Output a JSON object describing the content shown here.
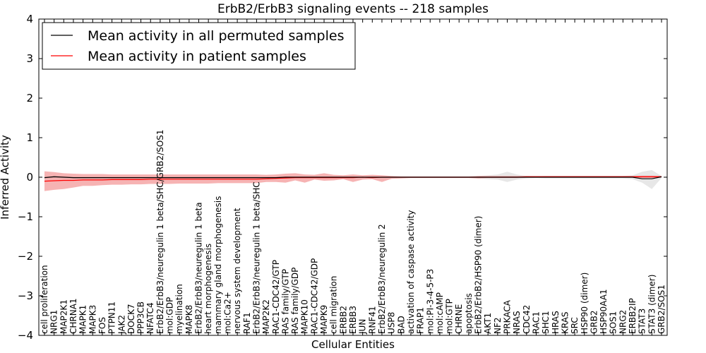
{
  "chart_data": {
    "type": "line",
    "title": "ErbB2/ErbB3 signaling events -- 218 samples",
    "xlabel": "Cellular Entities",
    "ylabel": "Inferred Activity",
    "ylim": [
      -4,
      4
    ],
    "yticks": [
      -4,
      -3,
      -2,
      -1,
      0,
      1,
      2,
      3,
      4
    ],
    "ytick_labels": [
      "−4",
      "−3",
      "−2",
      "−1",
      "0",
      "1",
      "2",
      "3",
      "4"
    ],
    "legend_position": "top-left",
    "grid": false,
    "categories": [
      "cell proliferation",
      "NRG1",
      "MAP2K1",
      "CHRNA1",
      "MAPK1",
      "MAPK3",
      "FOS",
      "PTPN11",
      "JAK2",
      "DOCK7",
      "PPP3CB",
      "NFATC4",
      "ErbB2/ErbB3/neuregulin 1 beta/SHC/GRB2/SOS1",
      "mol:GDP",
      "myelination",
      "MAPK8",
      "ErbB2/ErbB3/neuregulin 1 beta",
      "heart morphogenesis",
      "mammary gland morphogenesis",
      "mol:Ca2+",
      "nervous system development",
      "RAF1",
      "ErbB2/ErbB3/neuregulin 1 beta/SHC",
      "MAP2K2",
      "RAC1-CDC42/GTP",
      "RAS family/GTP",
      "RAS family/GDP",
      "MAPK10",
      "RAC1-CDC42/GDP",
      "MAPK9",
      "cell migration",
      "ERBB2",
      "ERBB3",
      "JUN",
      "RNF41",
      "ErbB2/ErbB3/neuregulin 2",
      "USP8",
      "BAD",
      "activation of caspase activity",
      "FRAP1",
      "mol:PI-3-4-5-P3",
      "mol:cAMP",
      "mol:GTP",
      "CHRNE",
      "apoptosis",
      "ErbB2/ErbB2/HSP90 (dimer)",
      "AKT1",
      "NF2",
      "PRKACA",
      "NRAS",
      "CDC42",
      "RAC1",
      "SHC1",
      "HRAS",
      "KRAS",
      "SRC",
      "HSP90 (dimer)",
      "GRB2",
      "HSP90AA1",
      "SOS1",
      "NRG2",
      "ERBB2IP",
      "STAT3",
      "STAT3 (dimer)",
      "GRB2/SOS1"
    ],
    "series": [
      {
        "name": "Mean activity in all permuted samples",
        "color": "#000000",
        "values": [
          -0.01,
          0.01,
          0.0,
          -0.01,
          -0.01,
          -0.01,
          -0.01,
          -0.01,
          -0.01,
          -0.01,
          -0.01,
          -0.01,
          -0.01,
          -0.01,
          -0.01,
          -0.01,
          -0.01,
          -0.01,
          -0.01,
          -0.01,
          -0.01,
          -0.01,
          -0.01,
          -0.01,
          -0.01,
          0.0,
          0.0,
          0.0,
          0.0,
          0.0,
          0.0,
          0.0,
          0.0,
          0.0,
          0.0,
          0.0,
          0.0,
          0.0,
          0.0,
          0.0,
          0.0,
          0.0,
          0.0,
          0.0,
          0.0,
          0.0,
          0.0,
          0.0,
          0.0,
          0.0,
          0.0,
          0.0,
          0.0,
          0.0,
          0.0,
          0.0,
          0.0,
          0.0,
          0.0,
          0.0,
          0.0,
          0.0,
          -0.04,
          -0.04,
          0.01
        ],
        "band_low": [
          -0.03,
          -0.02,
          -0.03,
          -0.04,
          -0.04,
          -0.04,
          -0.04,
          -0.04,
          -0.04,
          -0.04,
          -0.04,
          -0.04,
          -0.04,
          -0.04,
          -0.04,
          -0.04,
          -0.04,
          -0.04,
          -0.04,
          -0.04,
          -0.04,
          -0.04,
          -0.04,
          -0.04,
          -0.04,
          -0.02,
          -0.02,
          -0.02,
          -0.02,
          -0.02,
          -0.02,
          -0.01,
          -0.01,
          -0.01,
          -0.01,
          -0.01,
          -0.01,
          -0.01,
          -0.01,
          -0.01,
          -0.01,
          -0.01,
          -0.01,
          -0.01,
          -0.01,
          -0.03,
          -0.05,
          -0.06,
          -0.12,
          -0.06,
          -0.03,
          -0.02,
          -0.03,
          -0.03,
          -0.03,
          -0.03,
          -0.03,
          -0.03,
          -0.03,
          -0.03,
          -0.03,
          -0.05,
          -0.14,
          -0.3,
          -0.02
        ],
        "band_high": [
          0.02,
          0.04,
          0.03,
          0.02,
          0.02,
          0.02,
          0.02,
          0.02,
          0.02,
          0.02,
          0.02,
          0.02,
          0.02,
          0.02,
          0.02,
          0.02,
          0.02,
          0.02,
          0.02,
          0.02,
          0.02,
          0.02,
          0.02,
          0.02,
          0.02,
          0.02,
          0.02,
          0.02,
          0.02,
          0.02,
          0.02,
          0.01,
          0.01,
          0.01,
          0.01,
          0.01,
          0.01,
          0.01,
          0.01,
          0.01,
          0.01,
          0.01,
          0.01,
          0.01,
          0.01,
          0.03,
          0.05,
          0.07,
          0.14,
          0.07,
          0.03,
          0.02,
          0.03,
          0.03,
          0.03,
          0.03,
          0.03,
          0.03,
          0.03,
          0.03,
          0.03,
          0.05,
          0.14,
          0.18,
          0.03
        ]
      },
      {
        "name": "Mean activity in patient samples",
        "color": "#ff0000",
        "values": [
          -0.1,
          -0.09,
          -0.08,
          -0.08,
          -0.07,
          -0.07,
          -0.07,
          -0.06,
          -0.06,
          -0.06,
          -0.06,
          -0.05,
          -0.05,
          -0.05,
          -0.05,
          -0.05,
          -0.05,
          -0.05,
          -0.05,
          -0.05,
          -0.05,
          -0.05,
          -0.05,
          -0.04,
          -0.03,
          -0.02,
          -0.01,
          -0.01,
          -0.01,
          -0.01,
          -0.01,
          -0.01,
          -0.01,
          0.0,
          -0.01,
          0.0,
          0.0,
          0.0,
          0.0,
          0.0,
          0.0,
          0.0,
          0.0,
          0.0,
          0.0,
          0.0,
          0.0,
          0.0,
          0.0,
          0.0,
          0.01,
          0.01,
          0.01,
          0.01,
          0.01,
          0.01,
          0.01,
          0.01,
          0.01,
          0.01,
          0.01,
          0.01,
          0.01,
          0.01,
          0.01
        ],
        "band_low": [
          -0.35,
          -0.32,
          -0.3,
          -0.26,
          -0.22,
          -0.22,
          -0.2,
          -0.19,
          -0.19,
          -0.18,
          -0.18,
          -0.17,
          -0.17,
          -0.17,
          -0.16,
          -0.16,
          -0.16,
          -0.16,
          -0.15,
          -0.15,
          -0.15,
          -0.15,
          -0.15,
          -0.12,
          -0.12,
          -0.14,
          -0.08,
          -0.14,
          -0.06,
          -0.09,
          -0.08,
          -0.05,
          -0.12,
          -0.06,
          -0.05,
          -0.12,
          -0.04,
          -0.03,
          -0.02,
          -0.02,
          -0.02,
          -0.02,
          -0.02,
          -0.02,
          -0.02,
          -0.03,
          -0.02,
          -0.02,
          -0.02,
          -0.02,
          -0.01,
          -0.01,
          -0.01,
          -0.01,
          -0.01,
          -0.01,
          -0.01,
          -0.01,
          -0.01,
          -0.01,
          -0.01,
          -0.01,
          -0.02,
          -0.02,
          -0.01
        ],
        "band_high": [
          0.15,
          0.13,
          0.1,
          0.09,
          0.08,
          0.08,
          0.08,
          0.07,
          0.07,
          0.07,
          0.07,
          0.07,
          0.07,
          0.07,
          0.07,
          0.07,
          0.07,
          0.07,
          0.07,
          0.07,
          0.07,
          0.07,
          0.07,
          0.06,
          0.07,
          0.09,
          0.1,
          0.07,
          0.06,
          0.1,
          0.06,
          0.05,
          0.07,
          0.05,
          0.06,
          0.05,
          0.03,
          0.02,
          0.02,
          0.02,
          0.02,
          0.02,
          0.02,
          0.02,
          0.02,
          0.03,
          0.03,
          0.03,
          0.03,
          0.03,
          0.03,
          0.03,
          0.03,
          0.03,
          0.03,
          0.03,
          0.03,
          0.03,
          0.03,
          0.03,
          0.03,
          0.03,
          0.04,
          0.04,
          0.03
        ]
      }
    ]
  }
}
